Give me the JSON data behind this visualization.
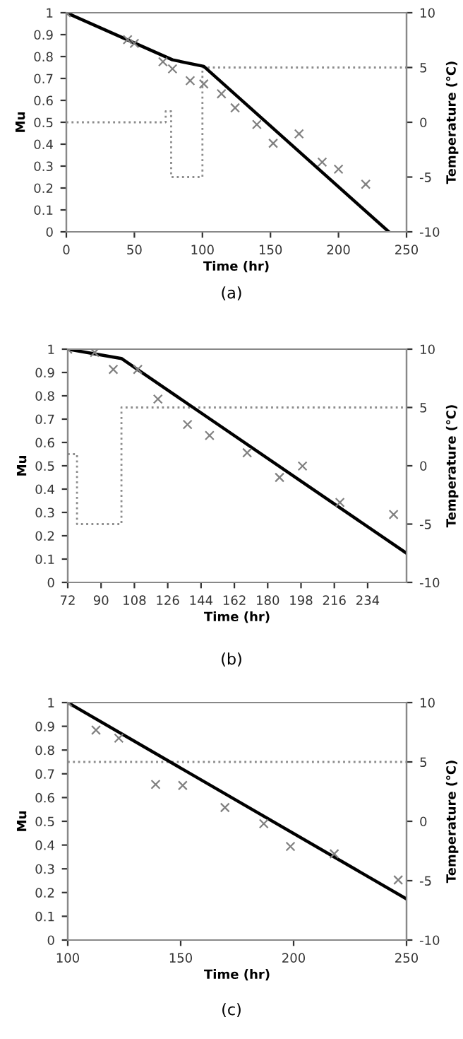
{
  "chart_data": [
    {
      "type": "line",
      "xlabel": "Time (hr)",
      "ylabel": "Mu",
      "y2label": "Temperature (℃)",
      "annotations": [
        "(a)"
      ],
      "xlim": [
        0,
        250
      ],
      "xticks": [
        0,
        50,
        100,
        150,
        200,
        250
      ],
      "ylim": [
        0,
        1
      ],
      "yticks": [
        0,
        0.1,
        0.2,
        0.3,
        0.4,
        0.5,
        0.6,
        0.7,
        0.8,
        0.9,
        1
      ],
      "y2lim": [
        -10,
        10
      ],
      "y2ticks": [
        -10,
        -5,
        0,
        5,
        10
      ],
      "grid": false,
      "legend": false,
      "series": [
        {
          "type": "scatter",
          "marker": "cross",
          "color": "#808080",
          "x": [
            0,
            45,
            50,
            71,
            78,
            91,
            101,
            114,
            124,
            140,
            152,
            171,
            188,
            200,
            220
          ],
          "values": [
            1.0,
            0.877,
            0.86,
            0.776,
            0.744,
            0.69,
            0.675,
            0.63,
            0.566,
            0.49,
            0.404,
            0.447,
            0.318,
            0.286,
            0.217
          ]
        },
        {
          "line_style": "solid",
          "color": "#000000",
          "x": [
            0,
            78,
            101,
            237
          ],
          "values": [
            1.0,
            0.785,
            0.755,
            0
          ]
        },
        {
          "type": "step",
          "axis": "y2",
          "line_style": "dotted",
          "color": "#8c8c8c",
          "x": [
            0,
            73,
            77,
            100,
            250
          ],
          "values": [
            0,
            1,
            -5,
            5,
            5
          ]
        }
      ]
    },
    {
      "type": "line",
      "xlabel": "Time (hr)",
      "ylabel": "Mu",
      "y2label": "Temperature (℃)",
      "annotations": [
        "(b)"
      ],
      "xlim": [
        72,
        255
      ],
      "xticks": [
        72,
        90,
        108,
        126,
        144,
        162,
        180,
        198,
        216,
        234
      ],
      "ylim": [
        0,
        1
      ],
      "yticks": [
        0,
        0.1,
        0.2,
        0.3,
        0.4,
        0.5,
        0.6,
        0.7,
        0.8,
        0.9,
        1
      ],
      "y2lim": [
        -10,
        10
      ],
      "y2ticks": [
        -10,
        -5,
        0,
        5,
        10
      ],
      "grid": false,
      "legend": false,
      "series": [
        {
          "type": "scatter",
          "marker": "cross",
          "color": "#808080",
          "x": [
            72,
            86.5,
            96.6,
            109.8,
            120.7,
            136.7,
            148.6,
            168.9,
            186.4,
            198.8,
            219,
            248
          ],
          "values": [
            1.0,
            0.986,
            0.913,
            0.913,
            0.786,
            0.677,
            0.63,
            0.556,
            0.45,
            0.499,
            0.343,
            0.291
          ]
        },
        {
          "line_style": "solid",
          "color": "#000000",
          "x": [
            72,
            101,
            255
          ],
          "values": [
            1.0,
            0.96,
            0.125
          ]
        },
        {
          "type": "step",
          "axis": "y2",
          "line_style": "dotted",
          "color": "#8c8c8c",
          "x": [
            72,
            77,
            101,
            255
          ],
          "values": [
            1,
            -5,
            5,
            5
          ]
        }
      ]
    },
    {
      "type": "line",
      "xlabel": "Time (hr)",
      "ylabel": "Mu",
      "y2label": "Temperature (℃)",
      "annotations": [
        "(c)"
      ],
      "xlim": [
        100,
        250
      ],
      "xticks": [
        100,
        150,
        200,
        250
      ],
      "ylim": [
        0,
        1
      ],
      "yticks": [
        0,
        0.1,
        0.2,
        0.3,
        0.4,
        0.5,
        0.6,
        0.7,
        0.8,
        0.9,
        1
      ],
      "y2lim": [
        -10,
        10
      ],
      "y2ticks": [
        -10,
        -5,
        0,
        5,
        10
      ],
      "grid": false,
      "legend": false,
      "series": [
        {
          "type": "scatter",
          "marker": "cross",
          "color": "#808080",
          "x": [
            100,
            112.5,
            122.6,
            138.9,
            150.9,
            169.6,
            186.8,
            198.6,
            218,
            246.3
          ],
          "values": [
            1.0,
            0.884,
            0.85,
            0.655,
            0.651,
            0.558,
            0.49,
            0.394,
            0.363,
            0.253
          ]
        },
        {
          "line_style": "solid",
          "color": "#000000",
          "x": [
            100,
            250
          ],
          "values": [
            1.0,
            0.173
          ]
        },
        {
          "type": "step",
          "axis": "y2",
          "line_style": "dotted",
          "color": "#8c8c8c",
          "x": [
            100,
            250
          ],
          "values": [
            5,
            5
          ]
        }
      ]
    }
  ]
}
